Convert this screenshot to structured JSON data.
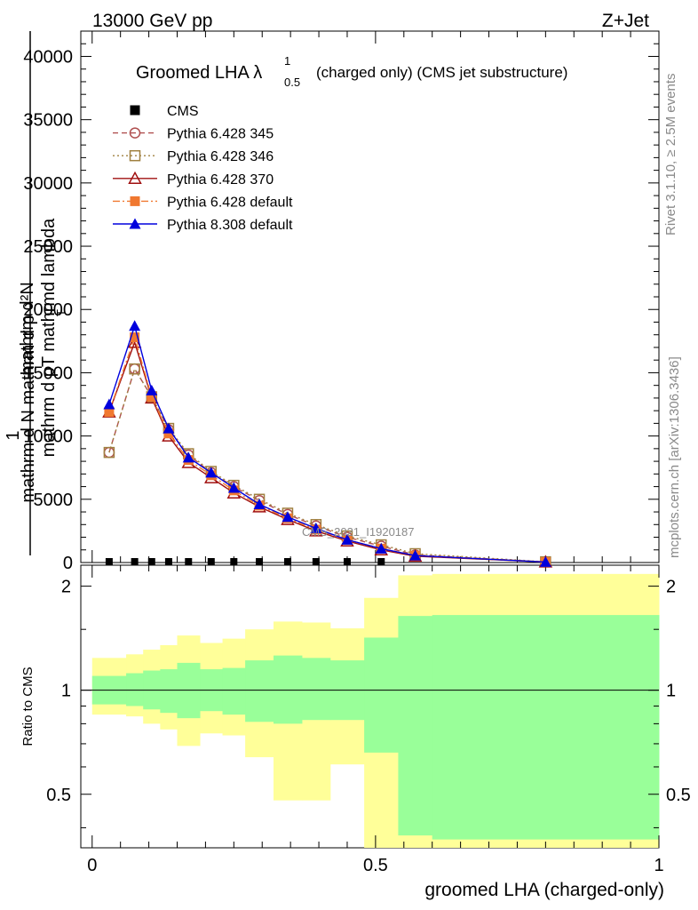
{
  "header": {
    "left": "13000 GeV pp",
    "right": "Z+Jet"
  },
  "side_text": {
    "rivet": "Rivet 3.1.10, ≥ 2.5M events",
    "mcplots": "mcplots.cern.ch [arXiv:1306.3436]"
  },
  "watermark": "CMS_2021_I1920187",
  "ylabel_main": "1 / mathrm d N  mathrm d^2N / mathrm d p_T mathrm d p_T mathrm d lambda",
  "ylabel_main_lines": [
    "mathrm d²N",
    "mathrm d pT mathrmd lambda",
    "1",
    "mathrm d N mathrm d p",
    "T"
  ],
  "ylabel_ratio": "Ratio to CMS",
  "xlabel": "groomed LHA (charged-only)",
  "title": {
    "main": "Groomed LHA λ",
    "sup": "1",
    "sub": "0.5",
    "rest": "(charged only) (CMS jet substructure)"
  },
  "legend": [
    {
      "label": "CMS",
      "color": "#000000",
      "marker": "square-filled",
      "line": "none"
    },
    {
      "label": "Pythia 6.428 345",
      "color": "#b05050",
      "marker": "circle-open",
      "line": "dashed"
    },
    {
      "label": "Pythia 6.428 346",
      "color": "#a08040",
      "marker": "square-open",
      "line": "dotted"
    },
    {
      "label": "Pythia 6.428 370",
      "color": "#a01010",
      "marker": "triangle-open",
      "line": "solid"
    },
    {
      "label": "Pythia 6.428 default",
      "color": "#f07830",
      "marker": "square-filled",
      "line": "dashdot"
    },
    {
      "label": "Pythia 8.308 default",
      "color": "#0000dd",
      "marker": "triangle-filled",
      "line": "solid"
    }
  ],
  "chart_data": {
    "type": "line",
    "main": {
      "x": [
        0.03,
        0.075,
        0.105,
        0.135,
        0.17,
        0.21,
        0.25,
        0.295,
        0.345,
        0.395,
        0.45,
        0.51,
        0.57,
        0.8
      ],
      "ylim": [
        0,
        42000
      ],
      "yticks": [
        0,
        5000,
        10000,
        15000,
        20000,
        25000,
        30000,
        35000,
        40000
      ],
      "cms": [
        0,
        0,
        0,
        0,
        0,
        0,
        0,
        0,
        0,
        0,
        0,
        0,
        null,
        null
      ],
      "series": [
        {
          "name": "Pythia 6.428 345",
          "values": [
            8700,
            15300,
            13100,
            10500,
            8500,
            7100,
            6000,
            4900,
            3800,
            2900,
            2000,
            1300,
            600,
            50
          ]
        },
        {
          "name": "Pythia 6.428 346",
          "values": [
            8700,
            15300,
            13100,
            10600,
            8600,
            7200,
            6100,
            5000,
            3900,
            3000,
            2100,
            1400,
            700,
            60
          ]
        },
        {
          "name": "Pythia 6.428 370",
          "values": [
            11900,
            17400,
            13000,
            10000,
            7900,
            6700,
            5500,
            4400,
            3400,
            2500,
            1700,
            1000,
            500,
            40
          ]
        },
        {
          "name": "Pythia 6.428 default",
          "values": [
            11900,
            17800,
            13100,
            10200,
            8100,
            6900,
            5700,
            4500,
            3500,
            2600,
            1800,
            1100,
            550,
            40
          ]
        },
        {
          "name": "Pythia 8.308 default",
          "values": [
            12500,
            18700,
            13600,
            10600,
            8300,
            7100,
            5900,
            4600,
            3600,
            2700,
            1800,
            1100,
            550,
            40
          ]
        }
      ]
    },
    "ratio": {
      "ylim": [
        0.35,
        2.3
      ],
      "yticks": [
        0.5,
        1,
        2
      ],
      "xlim": [
        -0.02,
        1.0
      ],
      "xticks": [
        0,
        0.5,
        1
      ],
      "bins": [
        {
          "lo": 0.0,
          "hi": 0.06,
          "stat": [
            0.91,
            1.1
          ],
          "tot": [
            0.85,
            1.24
          ]
        },
        {
          "lo": 0.06,
          "hi": 0.09,
          "stat": [
            0.9,
            1.12
          ],
          "tot": [
            0.84,
            1.27
          ]
        },
        {
          "lo": 0.09,
          "hi": 0.12,
          "stat": [
            0.88,
            1.14
          ],
          "tot": [
            0.8,
            1.31
          ]
        },
        {
          "lo": 0.12,
          "hi": 0.15,
          "stat": [
            0.86,
            1.15
          ],
          "tot": [
            0.77,
            1.35
          ]
        },
        {
          "lo": 0.15,
          "hi": 0.19,
          "stat": [
            0.83,
            1.2
          ],
          "tot": [
            0.69,
            1.44
          ]
        },
        {
          "lo": 0.19,
          "hi": 0.23,
          "stat": [
            0.87,
            1.15
          ],
          "tot": [
            0.75,
            1.37
          ]
        },
        {
          "lo": 0.23,
          "hi": 0.27,
          "stat": [
            0.85,
            1.16
          ],
          "tot": [
            0.74,
            1.41
          ]
        },
        {
          "lo": 0.27,
          "hi": 0.32,
          "stat": [
            0.81,
            1.22
          ],
          "tot": [
            0.64,
            1.5
          ]
        },
        {
          "lo": 0.32,
          "hi": 0.37,
          "stat": [
            0.8,
            1.26
          ],
          "tot": [
            0.48,
            1.58
          ]
        },
        {
          "lo": 0.37,
          "hi": 0.42,
          "stat": [
            0.82,
            1.24
          ],
          "tot": [
            0.48,
            1.57
          ]
        },
        {
          "lo": 0.42,
          "hi": 0.48,
          "stat": [
            0.82,
            1.22
          ],
          "tot": [
            0.61,
            1.51
          ]
        },
        {
          "lo": 0.48,
          "hi": 0.54,
          "stat": [
            0.66,
            1.42
          ],
          "tot": [
            0.3,
            1.85
          ]
        },
        {
          "lo": 0.54,
          "hi": 0.6,
          "stat": [
            0.38,
            1.64
          ],
          "tot": [
            0.3,
            2.15
          ]
        },
        {
          "lo": 0.6,
          "hi": 1.0,
          "stat": [
            0.37,
            1.65
          ],
          "tot": [
            0.3,
            2.17
          ]
        }
      ]
    },
    "colors": {
      "stat_band": "#99ff99",
      "total_band": "#ffff99"
    }
  }
}
